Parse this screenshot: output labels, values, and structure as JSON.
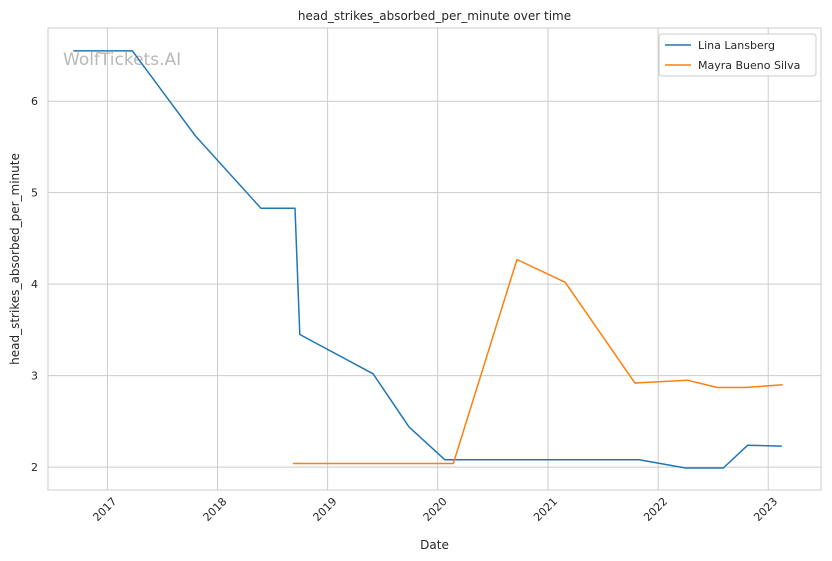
{
  "chart_data": {
    "type": "line",
    "title": "head_strikes_absorbed_per_minute over time",
    "xlabel": "Date",
    "ylabel": "head_strikes_absorbed_per_minute",
    "watermark": "WolfTickets.AI",
    "x_ticks": [
      "2017",
      "2018",
      "2019",
      "2020",
      "2021",
      "2022",
      "2023"
    ],
    "y_ticks": [
      2,
      3,
      4,
      5,
      6
    ],
    "xlim": [
      "2016-06-18",
      "2023-06-25"
    ],
    "ylim": [
      1.75,
      6.8
    ],
    "grid": true,
    "legend_position": "top-right",
    "series": [
      {
        "name": "Lina Lansberg",
        "color": "#1f77b4",
        "points": [
          {
            "x": "2016-09-10",
            "y": 6.55
          },
          {
            "x": "2017-03-25",
            "y": 6.55
          },
          {
            "x": "2017-10-20",
            "y": 5.62
          },
          {
            "x": "2018-05-25",
            "y": 4.83
          },
          {
            "x": "2018-09-15",
            "y": 4.83
          },
          {
            "x": "2018-10-01",
            "y": 3.45
          },
          {
            "x": "2019-06-01",
            "y": 3.02
          },
          {
            "x": "2019-09-28",
            "y": 2.44
          },
          {
            "x": "2020-01-25",
            "y": 2.08
          },
          {
            "x": "2021-10-30",
            "y": 2.08
          },
          {
            "x": "2022-04-02",
            "y": 1.99
          },
          {
            "x": "2022-08-05",
            "y": 1.99
          },
          {
            "x": "2022-10-25",
            "y": 2.24
          },
          {
            "x": "2023-02-15",
            "y": 2.23
          }
        ]
      },
      {
        "name": "Mayra Bueno Silva",
        "color": "#ff7f0e",
        "points": [
          {
            "x": "2018-09-08",
            "y": 2.04
          },
          {
            "x": "2020-02-22",
            "y": 2.04
          },
          {
            "x": "2020-09-20",
            "y": 4.27
          },
          {
            "x": "2021-02-27",
            "y": 4.02
          },
          {
            "x": "2021-10-16",
            "y": 2.92
          },
          {
            "x": "2022-04-09",
            "y": 2.95
          },
          {
            "x": "2022-07-16",
            "y": 2.87
          },
          {
            "x": "2022-10-15",
            "y": 2.87
          },
          {
            "x": "2023-02-18",
            "y": 2.9
          }
        ]
      }
    ]
  }
}
